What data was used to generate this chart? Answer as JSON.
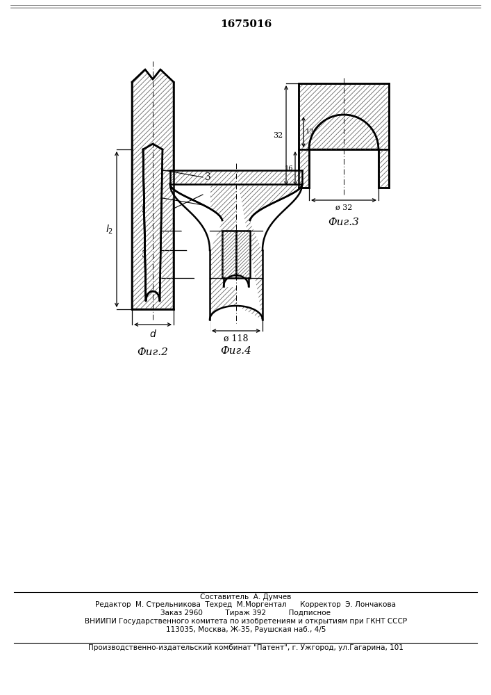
{
  "title": "1675016",
  "bg_color": "#ffffff",
  "line_color": "#000000",
  "fig2_label": "Фиг.2",
  "fig3_label": "Фиг.3",
  "fig4_label": "Фиг.4",
  "footer_line1": "Составитель  А. Думчев",
  "footer_line2": "Редактор  М. Стрельникова  Техред  М.Моргентал      Корректор  Э. Лончакова",
  "footer_line3": "Заказ 2960          Тираж 392          Подписное",
  "footer_line4": "ВНИИПИ Государственного комитета по изобретениям и открытиям при ГКНТ СССР",
  "footer_line5": "113035, Москва, Ж-35, Раушская наб., 4/5",
  "footer_line6": "Производственно-издательский комбинат \"Патент\", г. Ужгород, ул.Гагарина, 101"
}
